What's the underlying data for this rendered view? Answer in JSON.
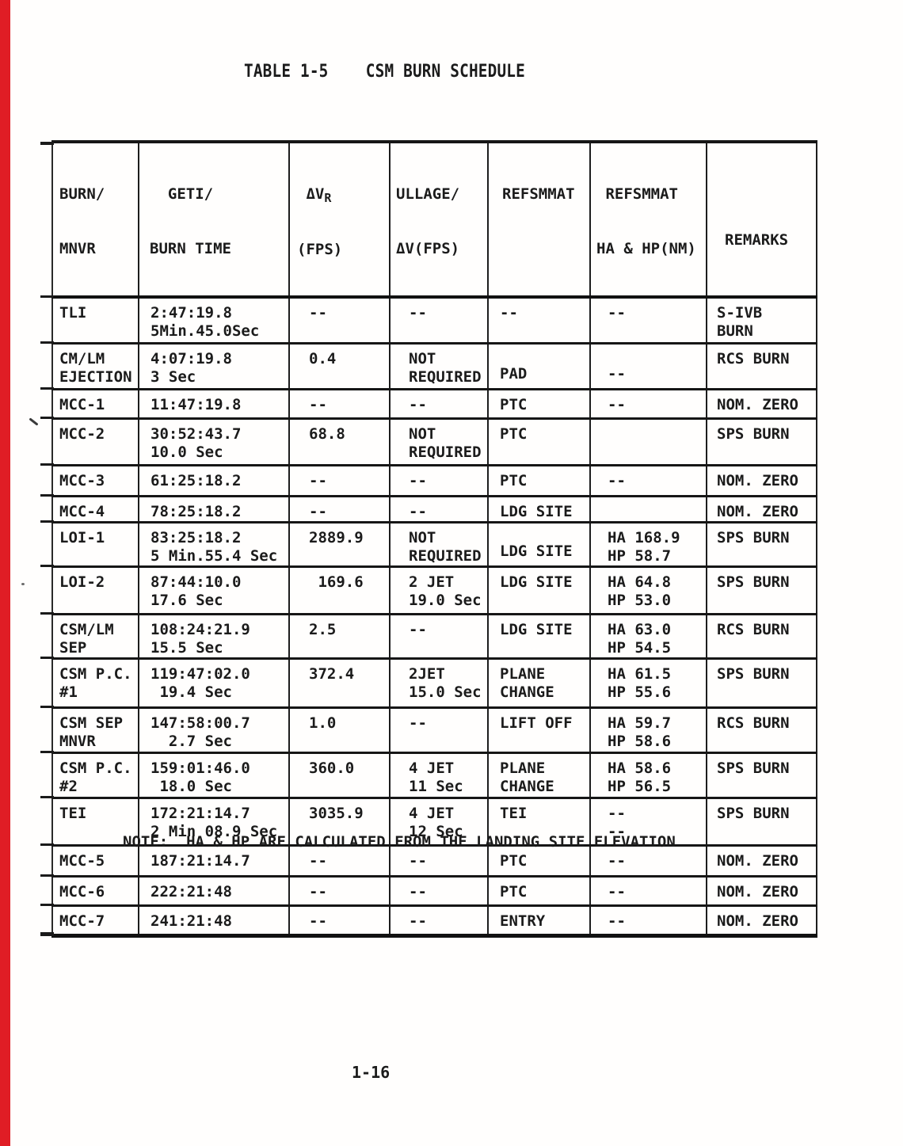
{
  "page": {
    "title": "TABLE 1-5    CSM BURN SCHEDULE",
    "note": "NOTE:  HA & HP ARE CALCULATED FROM THE LANDING SITE ELEVATION",
    "page_number": "1-16",
    "colors": {
      "edge_bar_red": "#e01d25",
      "ink": "#1b1b1b",
      "paper": "#fffefd"
    }
  },
  "table": {
    "header": {
      "col1": [
        "BURN/",
        "MNVR"
      ],
      "col2": [
        "  GETI/",
        "BURN TIME"
      ],
      "dv_label": " ΔV",
      "dv_sub": "R",
      "dv_unit": "(FPS)",
      "col4": [
        "ULLAGE/",
        "ΔV(FPS)"
      ],
      "col5": [
        "REFSMMAT"
      ],
      "col6": [
        " REFSMMAT",
        "HA & HP(NM)"
      ],
      "col7": [
        "REMARKS"
      ]
    },
    "rows": [
      {
        "burn": [
          "TLI"
        ],
        "geti": [
          "2:47:19.8",
          "5Min.45.0Sec"
        ],
        "dv": [
          "--"
        ],
        "ullage": [
          "--"
        ],
        "refsmmat": [
          "--"
        ],
        "hahp": [
          "--"
        ],
        "remarks": [
          "S-IVB",
          "BURN"
        ]
      },
      {
        "burn": [
          "CM/LM",
          "EJECTION"
        ],
        "geti": [
          "4:07:19.8",
          "3 Sec"
        ],
        "dv": [
          "0.4"
        ],
        "ullage": [
          "NOT",
          "REQUIRED"
        ],
        "refsmmat": {
          "lines": [
            "PAD"
          ],
          "valign": "bottom"
        },
        "hahp": {
          "lines": [
            "--"
          ],
          "valign": "bottom"
        },
        "remarks": [
          "RCS BURN"
        ]
      },
      {
        "burn": [
          "MCC-1"
        ],
        "geti": [
          "11:47:19.8"
        ],
        "dv": [
          "--"
        ],
        "ullage": [
          "--"
        ],
        "refsmmat": [
          "PTC"
        ],
        "hahp": [
          "--"
        ],
        "remarks": [
          "NOM. ZERO"
        ]
      },
      {
        "burn": [
          "MCC-2"
        ],
        "geti": [
          "30:52:43.7",
          "10.0 Sec"
        ],
        "dv": [
          "68.8"
        ],
        "ullage": [
          "NOT",
          "REQUIRED"
        ],
        "refsmmat": [
          "PTC"
        ],
        "hahp": [],
        "remarks": [
          "SPS BURN"
        ]
      },
      {
        "burn": [
          "MCC-3"
        ],
        "geti": [
          "61:25:18.2"
        ],
        "dv": [
          "--"
        ],
        "ullage": [
          "--"
        ],
        "refsmmat": [
          "PTC"
        ],
        "hahp": [
          "--"
        ],
        "remarks": [
          "NOM. ZERO"
        ]
      },
      {
        "burn": [
          "MCC-4"
        ],
        "geti": [
          "78:25:18.2"
        ],
        "dv": [
          "--"
        ],
        "ullage": [
          "--"
        ],
        "refsmmat": [
          "LDG SITE"
        ],
        "hahp": [],
        "remarks": [
          "NOM. ZERO"
        ]
      },
      {
        "burn": [
          "LOI-1"
        ],
        "geti": [
          "83:25:18.2",
          "5 Min.55.4 Sec"
        ],
        "dv": [
          "2889.9"
        ],
        "ullage": [
          "NOT",
          "REQUIRED"
        ],
        "refsmmat": {
          "lines": [
            "LDG SITE"
          ],
          "valign": "bottom"
        },
        "hahp": [
          "HA 168.9",
          "HP 58.7"
        ],
        "remarks": [
          "SPS BURN"
        ]
      },
      {
        "burn": [
          "LOI-2"
        ],
        "geti": [
          "87:44:10.0",
          "17.6 Sec"
        ],
        "dv": [
          " 169.6"
        ],
        "ullage": [
          "2 JET",
          "19.0 Sec"
        ],
        "refsmmat": [
          "LDG SITE"
        ],
        "hahp": [
          "HA 64.8",
          "HP 53.0"
        ],
        "remarks": [
          "SPS BURN"
        ]
      },
      {
        "burn": [
          "CSM/LM",
          "SEP"
        ],
        "geti": [
          "108:24:21.9",
          "15.5 Sec"
        ],
        "dv": [
          "2.5"
        ],
        "ullage": [
          "--"
        ],
        "refsmmat": [
          "LDG SITE"
        ],
        "hahp": [
          "HA 63.0",
          "HP 54.5"
        ],
        "remarks": [
          "RCS BURN"
        ]
      },
      {
        "burn": [
          "CSM P.C.",
          "#1"
        ],
        "geti": [
          "119:47:02.0",
          " 19.4 Sec"
        ],
        "dv": [
          "372.4"
        ],
        "ullage": [
          "2JET",
          "15.0 Sec"
        ],
        "refsmmat": [
          "PLANE",
          "CHANGE"
        ],
        "hahp": [
          "HA 61.5",
          "HP 55.6"
        ],
        "remarks": [
          "SPS BURN"
        ]
      },
      {
        "burn": [
          "CSM SEP",
          "MNVR"
        ],
        "geti": [
          "147:58:00.7",
          "  2.7 Sec"
        ],
        "dv": [
          "1.0"
        ],
        "ullage": [
          "--"
        ],
        "refsmmat": [
          "LIFT OFF"
        ],
        "hahp": [
          "HA 59.7",
          "HP 58.6"
        ],
        "remarks": [
          "RCS BURN"
        ]
      },
      {
        "burn": [
          "CSM P.C.",
          "#2"
        ],
        "geti": [
          "159:01:46.0",
          " 18.0 Sec"
        ],
        "dv": [
          "360.0"
        ],
        "ullage": [
          "4 JET",
          "11 Sec"
        ],
        "refsmmat": [
          "PLANE",
          "CHANGE"
        ],
        "hahp": [
          "HA 58.6",
          "HP 56.5"
        ],
        "remarks": [
          "SPS BURN"
        ]
      },
      {
        "burn": [
          "TEI"
        ],
        "geti": [
          "172:21:14.7",
          "2 Min 08.9 Sec"
        ],
        "dv": [
          "3035.9"
        ],
        "ullage": [
          "4 JET",
          "12 Sec"
        ],
        "refsmmat": [
          "TEI"
        ],
        "hahp": [
          "--",
          "--"
        ],
        "remarks": [
          "SPS BURN"
        ]
      },
      {
        "burn": [
          "MCC-5"
        ],
        "geti": [
          "187:21:14.7"
        ],
        "dv": [
          "--"
        ],
        "ullage": [
          "--"
        ],
        "refsmmat": [
          "PTC"
        ],
        "hahp": [
          "--"
        ],
        "remarks": [
          "NOM. ZERO"
        ]
      },
      {
        "burn": [
          "MCC-6"
        ],
        "geti": [
          "222:21:48"
        ],
        "dv": [
          "--"
        ],
        "ullage": [
          "--"
        ],
        "refsmmat": [
          "PTC"
        ],
        "hahp": [
          "--"
        ],
        "remarks": [
          "NOM. ZERO"
        ]
      },
      {
        "burn": [
          "MCC-7"
        ],
        "geti": [
          "241:21:48"
        ],
        "dv": [
          "--"
        ],
        "ullage": [
          "--"
        ],
        "refsmmat": [
          "ENTRY"
        ],
        "hahp": [
          "--"
        ],
        "remarks": [
          "NOM. ZERO"
        ]
      }
    ]
  }
}
